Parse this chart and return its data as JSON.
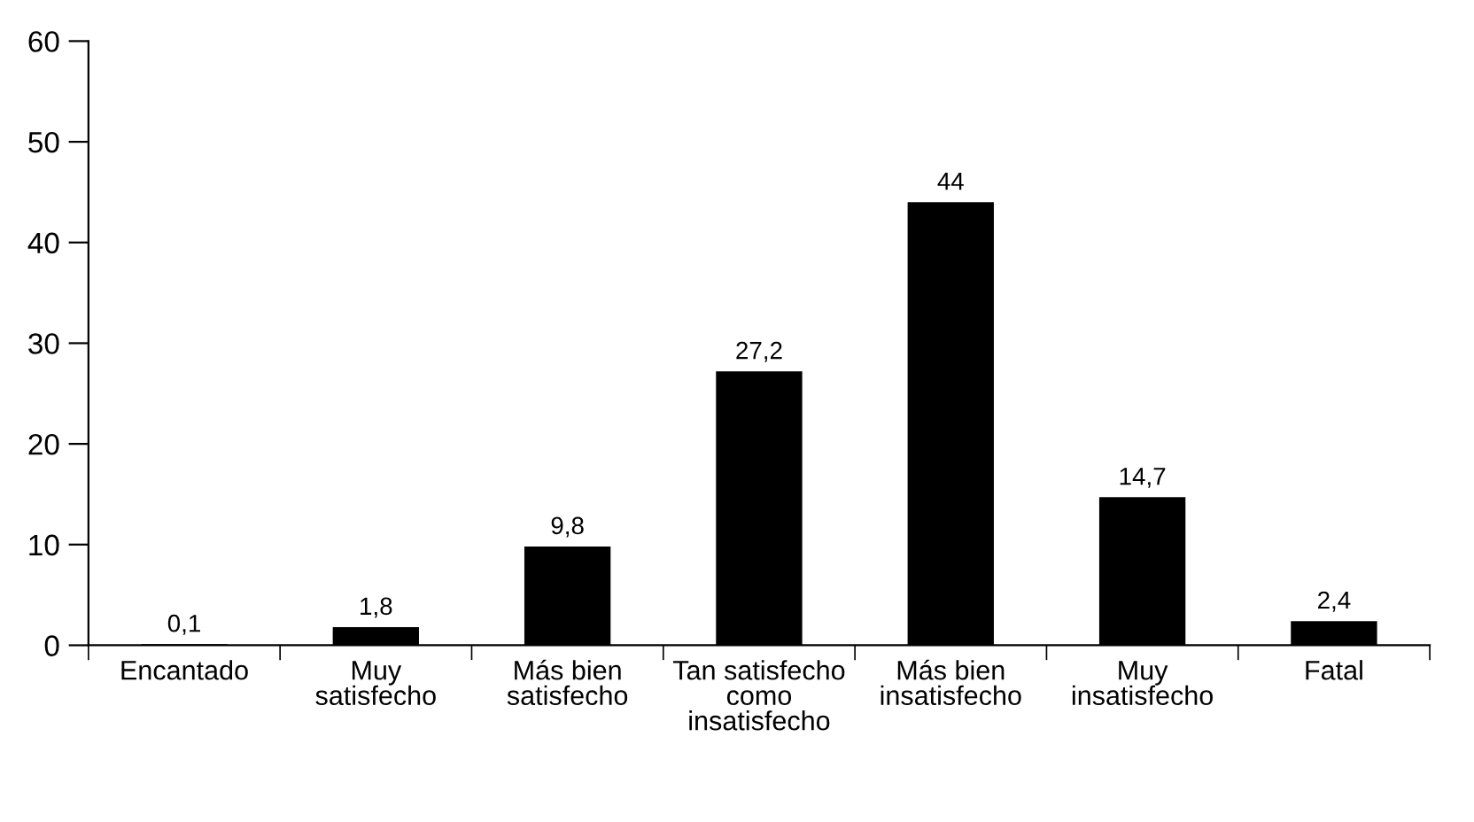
{
  "chart_data": {
    "type": "bar",
    "categories": [
      "Encantado",
      "Muy\nsatisfecho",
      "Más bien\nsatisfecho",
      "Tan satisfecho\ncomo\ninsatisfecho",
      "Más bien\ninsatisfecho",
      "Muy\ninsatisfecho",
      "Fatal"
    ],
    "values": [
      0.1,
      1.8,
      9.8,
      27.2,
      44,
      14.7,
      2.4
    ],
    "value_labels": [
      "0,1",
      "1,8",
      "9,8",
      "27,2",
      "44",
      "14,7",
      "2,4"
    ],
    "color": "#000000",
    "ylim": [
      0,
      60
    ],
    "yticks": [
      0,
      10,
      20,
      30,
      40,
      50,
      60
    ],
    "grid": false,
    "legend": false
  }
}
